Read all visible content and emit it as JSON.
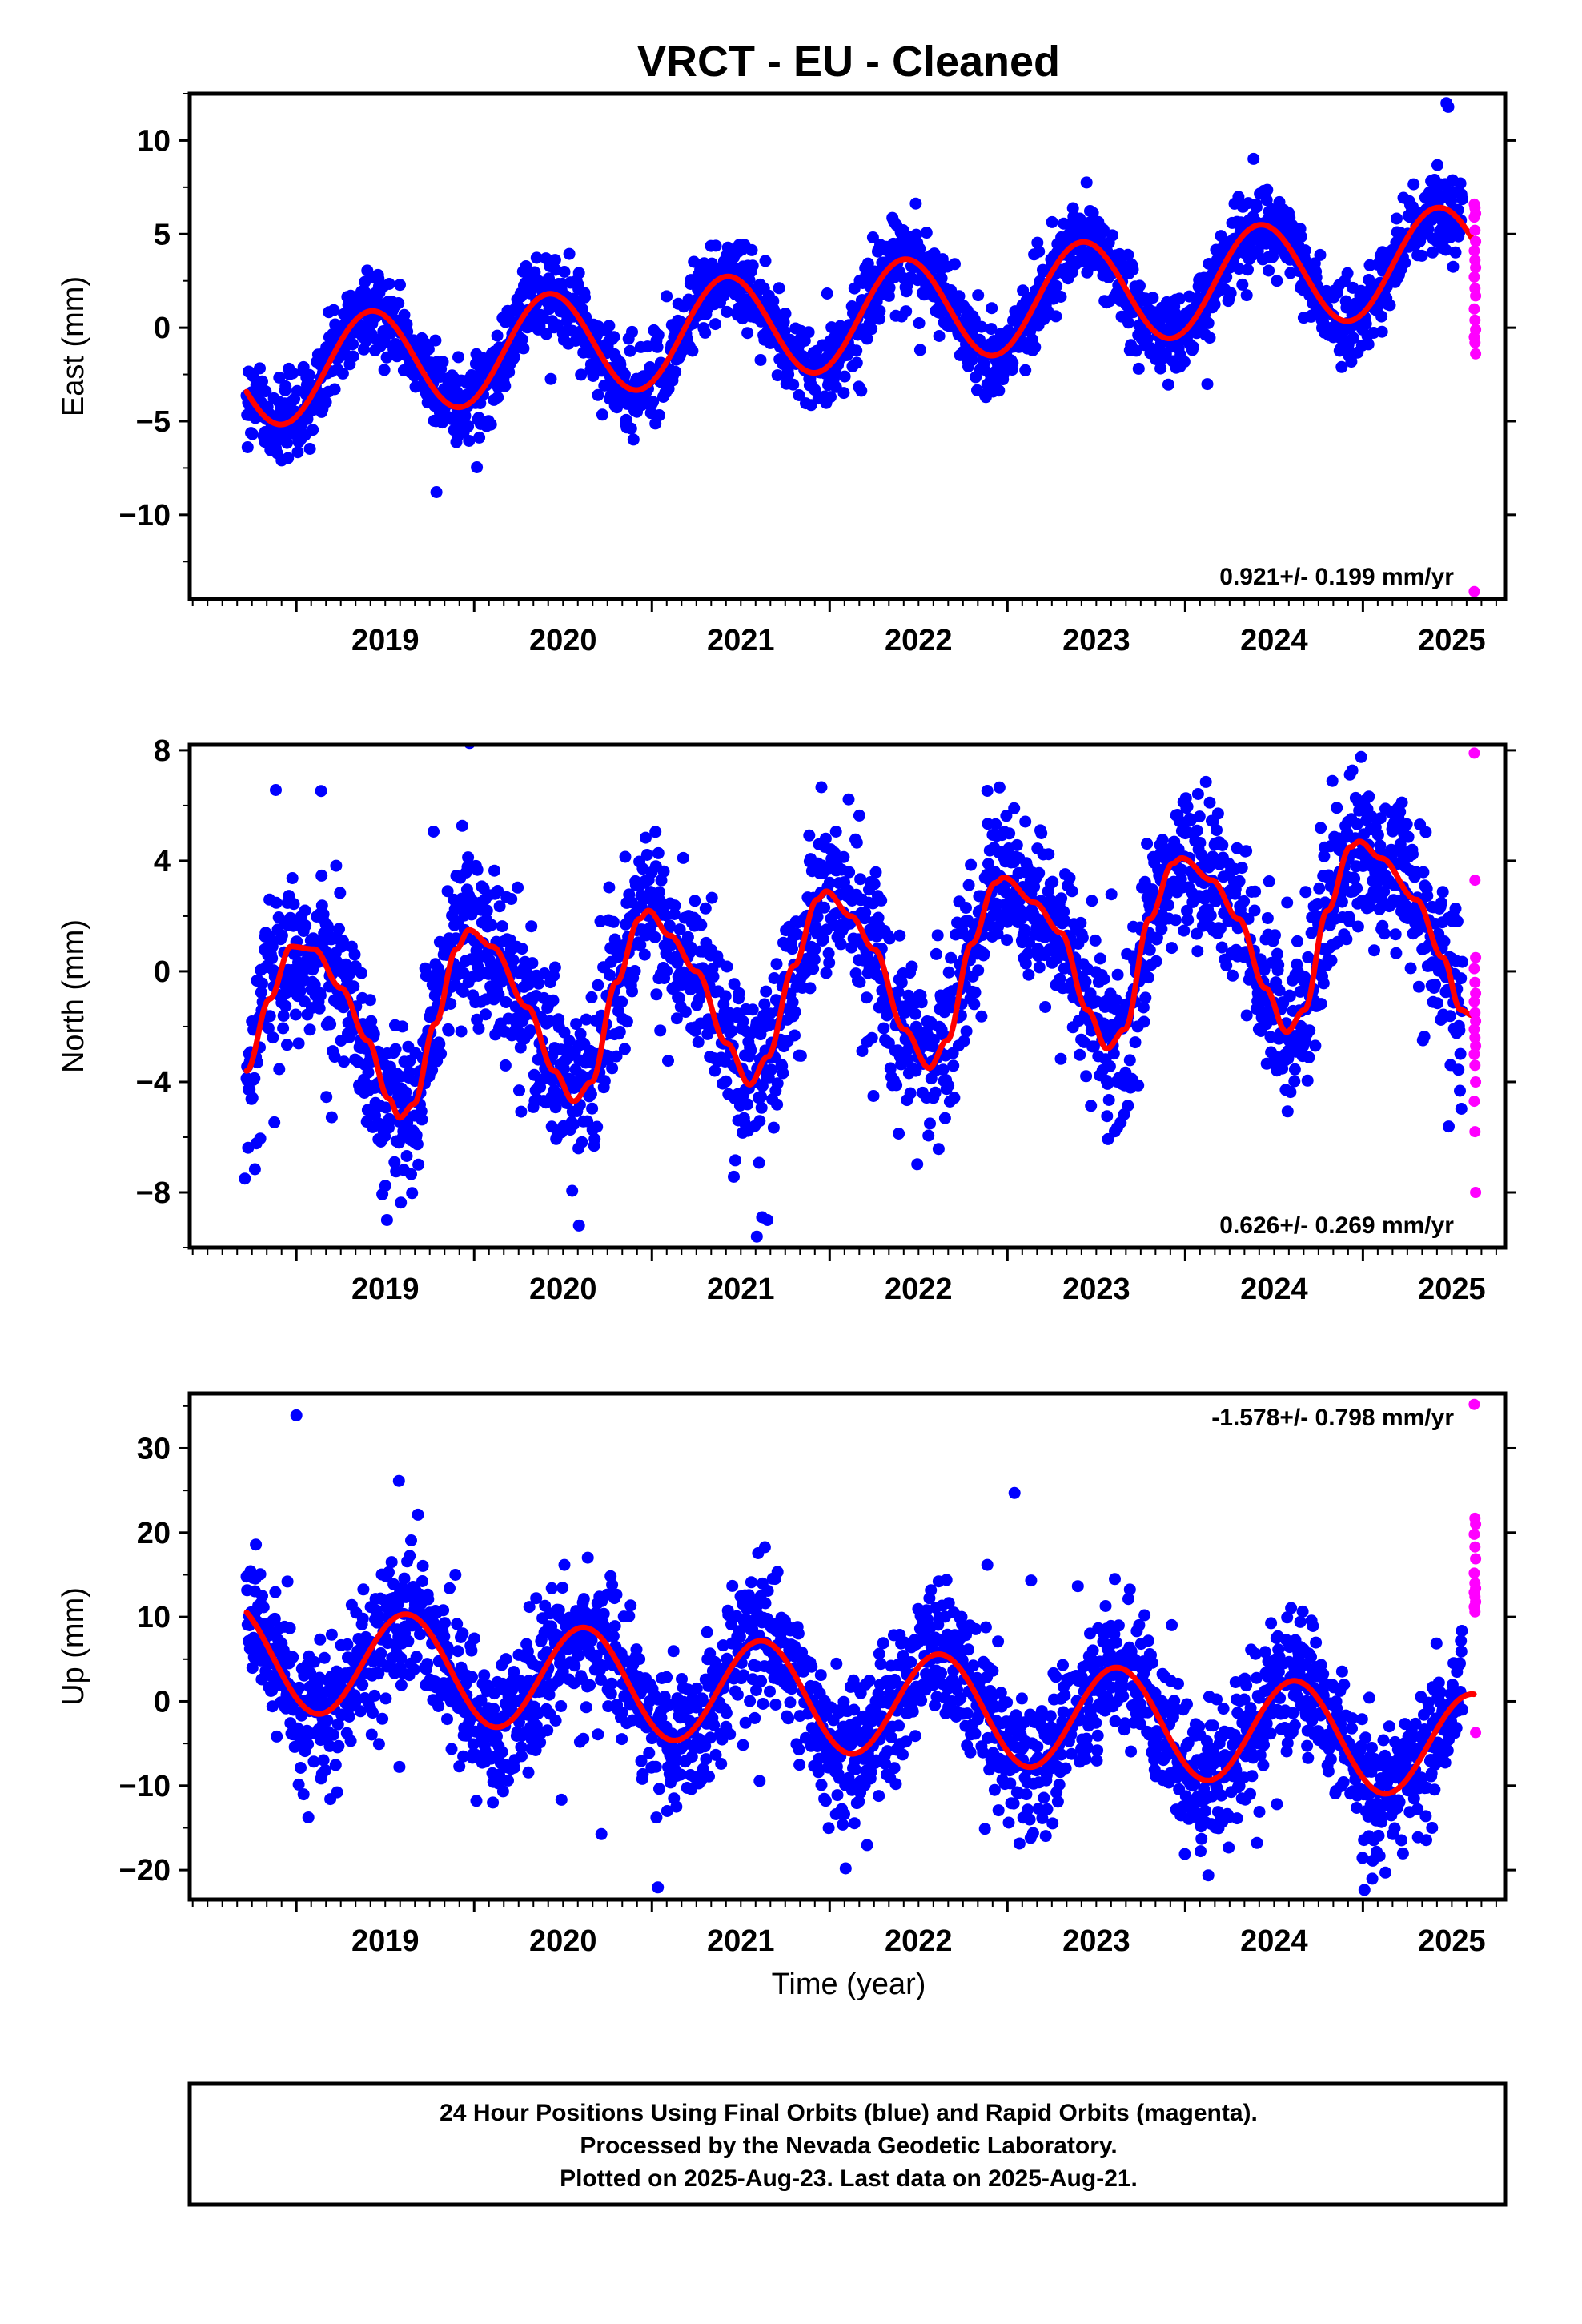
{
  "title": "VRCT  - EU - Cleaned",
  "x_ticks": [
    "2019",
    "2020",
    "2021",
    "2022",
    "2023",
    "2024",
    "2025"
  ],
  "xlabel": "Time (year)",
  "footer": {
    "line1": "24 Hour Positions Using Final Orbits (blue) and Rapid Orbits (magenta).",
    "line2": "Processed by the Nevada Geodetic Laboratory.",
    "line3": "Plotted on 2025-Aug-23. Last data on 2025-Aug-21."
  },
  "colors": {
    "final_orbits": "#0000ff",
    "rapid_orbits": "#ff00ff",
    "model_fit": "#ff0000",
    "frame": "#000000"
  },
  "chart_data": [
    {
      "type": "scatter",
      "name": "east",
      "ylabel": "East (mm)",
      "ylim": [
        -14.5,
        12.5
      ],
      "xlim": [
        2018.4,
        2025.8
      ],
      "yticks": [
        -10,
        -5,
        0,
        5,
        10
      ],
      "x_ticks": [
        2019,
        2020,
        2021,
        2022,
        2023,
        2024,
        2025
      ],
      "rate": "0.921+/- 0.199 mm/yr",
      "rate_position": "bottom-right",
      "model": {
        "intercept_2019": -2.3,
        "slope": 0.921,
        "annual_amp": 2.8,
        "annual_peak": 0.42
      },
      "final_orbits": {
        "x_start": 2018.72,
        "x_end": 2025.56,
        "noise": 1.1
      },
      "rapid_orbits": {
        "x": 2025.63,
        "values": [
          6.6,
          6.4,
          6.1,
          5.9,
          5.2,
          4.6,
          4.1,
          3.6,
          3.2,
          2.7,
          2.1,
          1.7,
          1.0,
          0.4,
          -0.1,
          -0.5,
          -0.8,
          -1.4,
          -14.1
        ]
      },
      "outliers": [
        [
          2025.47,
          12.0
        ],
        [
          2025.48,
          11.8
        ]
      ]
    },
    {
      "type": "scatter",
      "name": "north",
      "ylabel": "North (mm)",
      "ylim": [
        -10.0,
        8.2
      ],
      "xlim": [
        2018.4,
        2025.8
      ],
      "yticks": [
        -8,
        -4,
        0,
        4,
        8
      ],
      "x_ticks": [
        2019,
        2020,
        2021,
        2022,
        2023,
        2024,
        2025
      ],
      "rate": "0.626+/- 0.269 mm/yr",
      "rate_position": "bottom-right",
      "model_points": [
        [
          2018.72,
          -3.6
        ],
        [
          2018.85,
          -1.0
        ],
        [
          2018.97,
          0.9
        ],
        [
          2019.1,
          0.8
        ],
        [
          2019.25,
          -0.6
        ],
        [
          2019.4,
          -2.5
        ],
        [
          2019.52,
          -4.6
        ],
        [
          2019.58,
          -5.3
        ],
        [
          2019.66,
          -4.8
        ],
        [
          2019.78,
          -1.9
        ],
        [
          2019.9,
          0.8
        ],
        [
          2019.97,
          1.5
        ],
        [
          2020.1,
          0.9
        ],
        [
          2020.3,
          -1.3
        ],
        [
          2020.45,
          -3.6
        ],
        [
          2020.56,
          -4.7
        ],
        [
          2020.66,
          -4.0
        ],
        [
          2020.8,
          -0.4
        ],
        [
          2020.93,
          1.9
        ],
        [
          2020.98,
          2.2
        ],
        [
          2021.1,
          1.3
        ],
        [
          2021.25,
          0.0
        ],
        [
          2021.42,
          -2.6
        ],
        [
          2021.55,
          -4.1
        ],
        [
          2021.65,
          -3.1
        ],
        [
          2021.8,
          0.2
        ],
        [
          2021.93,
          2.6
        ],
        [
          2021.98,
          2.9
        ],
        [
          2022.12,
          2.0
        ],
        [
          2022.25,
          0.8
        ],
        [
          2022.42,
          -2.1
        ],
        [
          2022.56,
          -3.5
        ],
        [
          2022.66,
          -2.5
        ],
        [
          2022.8,
          1.0
        ],
        [
          2022.93,
          3.2
        ],
        [
          2022.98,
          3.4
        ],
        [
          2023.15,
          2.5
        ],
        [
          2023.3,
          1.4
        ],
        [
          2023.45,
          -1.4
        ],
        [
          2023.56,
          -2.8
        ],
        [
          2023.66,
          -2.1
        ],
        [
          2023.8,
          1.9
        ],
        [
          2023.93,
          3.9
        ],
        [
          2023.98,
          4.1
        ],
        [
          2024.15,
          3.3
        ],
        [
          2024.3,
          1.9
        ],
        [
          2024.45,
          -0.6
        ],
        [
          2024.57,
          -2.2
        ],
        [
          2024.67,
          -1.4
        ],
        [
          2024.8,
          2.2
        ],
        [
          2024.93,
          4.5
        ],
        [
          2024.98,
          4.7
        ],
        [
          2025.1,
          4.1
        ],
        [
          2025.3,
          2.6
        ],
        [
          2025.45,
          0.5
        ],
        [
          2025.55,
          -1.4
        ],
        [
          2025.62,
          -1.6
        ]
      ],
      "final_orbits": {
        "x_start": 2018.72,
        "x_end": 2025.56,
        "noise": 1.5
      },
      "rapid_orbits": {
        "x": 2025.63,
        "values": [
          7.9,
          3.3,
          0.5,
          0.1,
          -0.4,
          -0.8,
          -1.1,
          -1.5,
          -1.8,
          -2.1,
          -2.4,
          -2.7,
          -3.0,
          -3.4,
          -4.0,
          -4.7,
          -5.8,
          -8.0
        ]
      },
      "outliers": [
        [
          2018.71,
          -7.5
        ],
        [
          2021.62,
          -8.9
        ],
        [
          2021.65,
          -9.0
        ],
        [
          2021.59,
          -9.6
        ],
        [
          2020.59,
          -9.2
        ],
        [
          2019.51,
          -9.0
        ]
      ]
    },
    {
      "type": "scatter",
      "name": "up",
      "ylabel": "Up (mm)",
      "ylim": [
        -23.5,
        36.5
      ],
      "xlim": [
        2018.4,
        2025.8
      ],
      "yticks": [
        -20,
        -10,
        0,
        10,
        20,
        30
      ],
      "x_ticks": [
        2019,
        2020,
        2021,
        2022,
        2023,
        2024,
        2025
      ],
      "rate": "-1.578+/- 0.798 mm/yr",
      "rate_position": "top-right",
      "model": {
        "intercept_2019": 5.0,
        "slope": -1.578,
        "annual_amp": 6.3,
        "annual_peak": 0.62
      },
      "final_orbits": {
        "x_start": 2018.72,
        "x_end": 2025.56,
        "noise": 4.2
      },
      "rapid_orbits": {
        "x": 2025.63,
        "values": [
          35.2,
          21.7,
          21.0,
          19.8,
          18.3,
          16.9,
          15.2,
          14.0,
          13.4,
          12.9,
          12.4,
          11.8,
          11.2,
          10.6,
          -3.7
        ]
      },
      "outliers": [
        [
          2019.0,
          33.9
        ],
        [
          2023.04,
          24.7
        ],
        [
          2022.09,
          -19.8
        ]
      ]
    }
  ]
}
